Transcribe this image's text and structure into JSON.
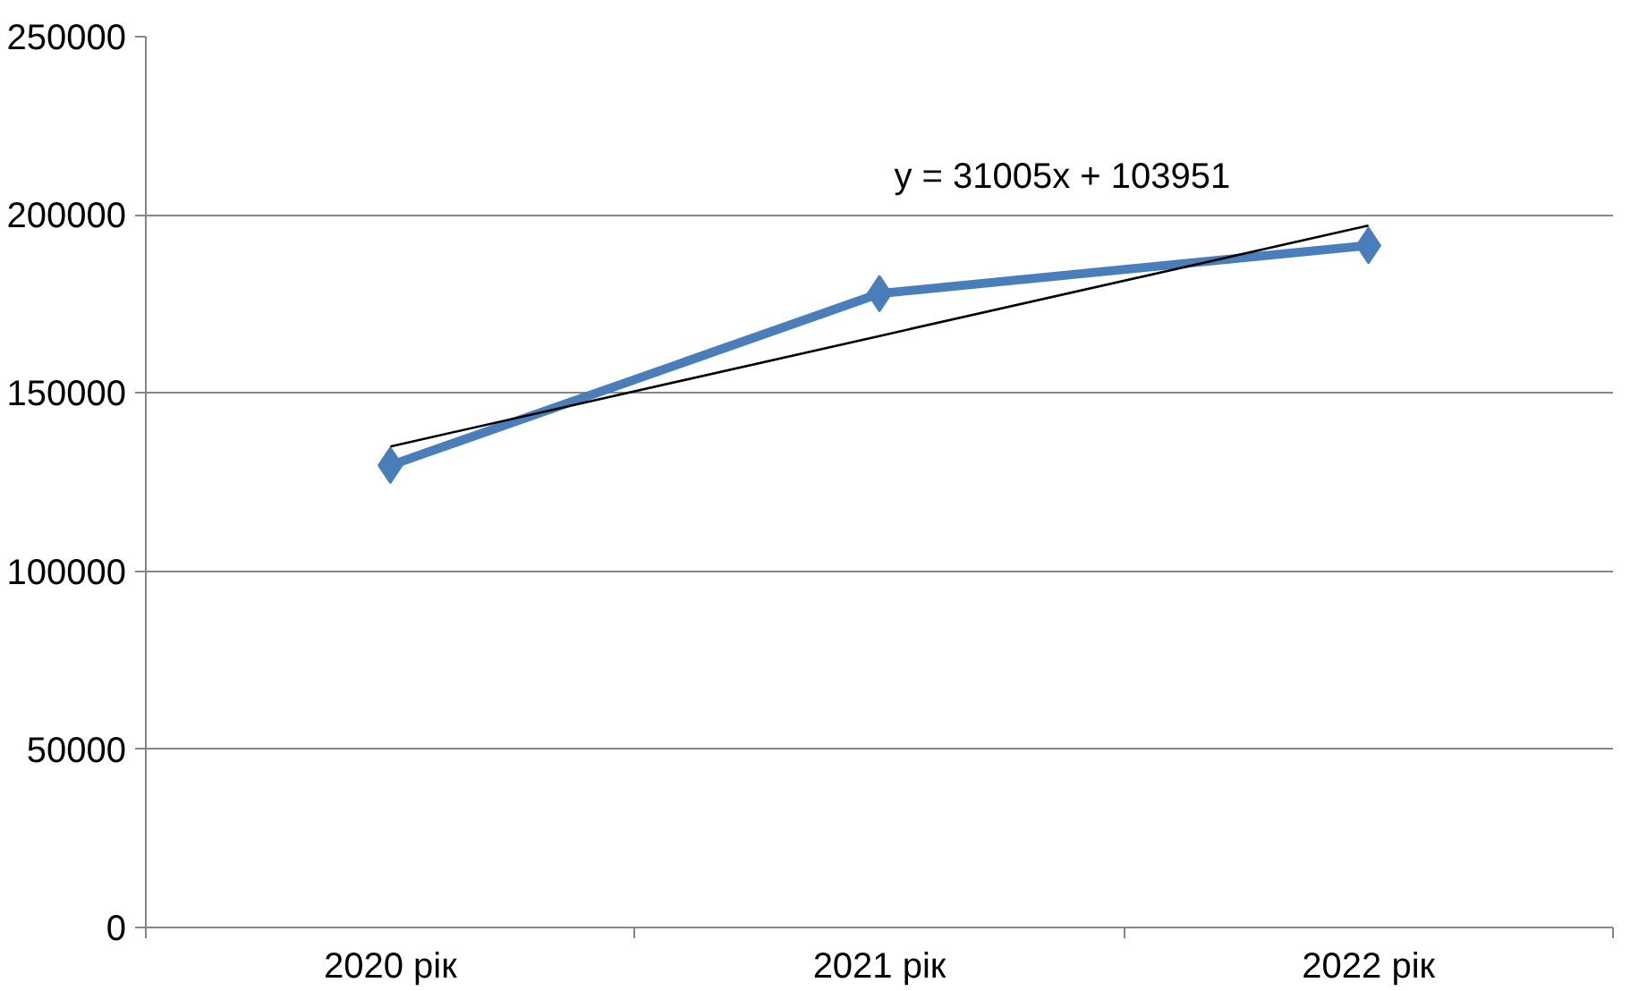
{
  "chart_data": {
    "type": "line",
    "categories": [
      "2020 рік",
      "2021 рік",
      "2022 рік"
    ],
    "series": [
      {
        "color": "#4a7ebb",
        "values": [
          129700,
          177900,
          191400
        ],
        "marker": "diamond"
      },
      {
        "type": "line",
        "color": "#000000",
        "values": [
          135000,
          166000,
          197000
        ],
        "marker": "none"
      }
    ],
    "annotations": [
      "y = 31005x + 103951"
    ],
    "ylim": [
      0,
      250000
    ],
    "yticks": [
      0,
      50000,
      100000,
      150000,
      200000,
      250000
    ],
    "grid": "y"
  }
}
